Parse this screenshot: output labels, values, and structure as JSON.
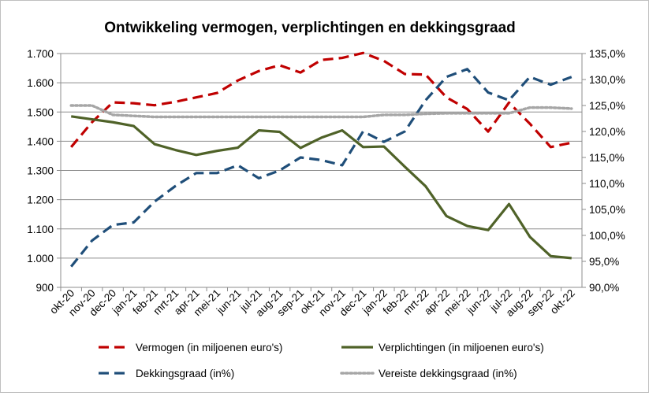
{
  "chart_data": {
    "type": "line",
    "title": "Ontwikkeling vermogen, verplichtingen en dekkingsgraad",
    "categories": [
      "okt-20",
      "nov-20",
      "dec-20",
      "jan-21",
      "feb-21",
      "mrt-21",
      "apr-21",
      "mei-21",
      "jun-21",
      "jul-21",
      "aug-21",
      "sep-21",
      "okt-21",
      "nov-21",
      "dec-21",
      "jan-22",
      "feb-22",
      "mrt-22",
      "apr-22",
      "mei-22",
      "jun-22",
      "jul-22",
      "aug-22",
      "sep-22",
      "okt-22"
    ],
    "y_left": {
      "min": 900,
      "max": 1700,
      "step": 100,
      "tick_labels": [
        "900",
        "1.000",
        "1.100",
        "1.200",
        "1.300",
        "1.400",
        "1.500",
        "1.600",
        "1.700"
      ]
    },
    "y_right": {
      "min": 90,
      "max": 135,
      "step": 5,
      "tick_labels": [
        "90,0%",
        "95,0%",
        "100,0%",
        "105,0%",
        "110,0%",
        "115,0%",
        "120,0%",
        "125,0%",
        "130,0%",
        "135,0%"
      ]
    },
    "grid": true,
    "legend_position": "bottom",
    "series": [
      {
        "name": "Vermogen (in miljoenen euro's)",
        "axis": "left",
        "color": "#c00000",
        "dash": "long-dash",
        "values": [
          1380,
          1465,
          1533,
          1530,
          1523,
          1535,
          1550,
          1565,
          1608,
          1640,
          1660,
          1635,
          1678,
          1685,
          1702,
          1675,
          1630,
          1628,
          1550,
          1510,
          1433,
          1532,
          1460,
          1380,
          1395
        ]
      },
      {
        "name": "Verplichtingen (in miljoenen euro's)",
        "axis": "left",
        "color": "#4f6228",
        "dash": "solid",
        "values": [
          1485,
          1475,
          1465,
          1452,
          1390,
          1370,
          1353,
          1367,
          1378,
          1437,
          1432,
          1377,
          1412,
          1437,
          1380,
          1382,
          1313,
          1246,
          1144,
          1110,
          1096,
          1185,
          1073,
          1007,
          1000
        ]
      },
      {
        "name": "Dekkingsgraad (in%)",
        "axis": "right",
        "color": "#1f4e79",
        "dash": "long-dash",
        "values": [
          94.0,
          99.0,
          102.0,
          102.5,
          106.5,
          109.5,
          112.0,
          112.0,
          113.5,
          111.0,
          112.5,
          115.0,
          114.5,
          113.5,
          120.0,
          118.0,
          120.0,
          126.0,
          130.5,
          132.0,
          127.5,
          126.0,
          130.5,
          129.0,
          130.5
        ]
      },
      {
        "name": "Vereiste dekkingsgraad (in%)",
        "axis": "right",
        "color": "#a6a6a6",
        "dash": "dotted",
        "values": [
          125.0,
          125.0,
          123.2,
          123.0,
          122.8,
          122.8,
          122.8,
          122.8,
          122.8,
          122.8,
          122.8,
          122.8,
          122.8,
          122.8,
          122.8,
          123.2,
          123.2,
          123.4,
          123.5,
          123.5,
          123.5,
          123.5,
          124.6,
          124.6,
          124.4
        ]
      }
    ]
  }
}
